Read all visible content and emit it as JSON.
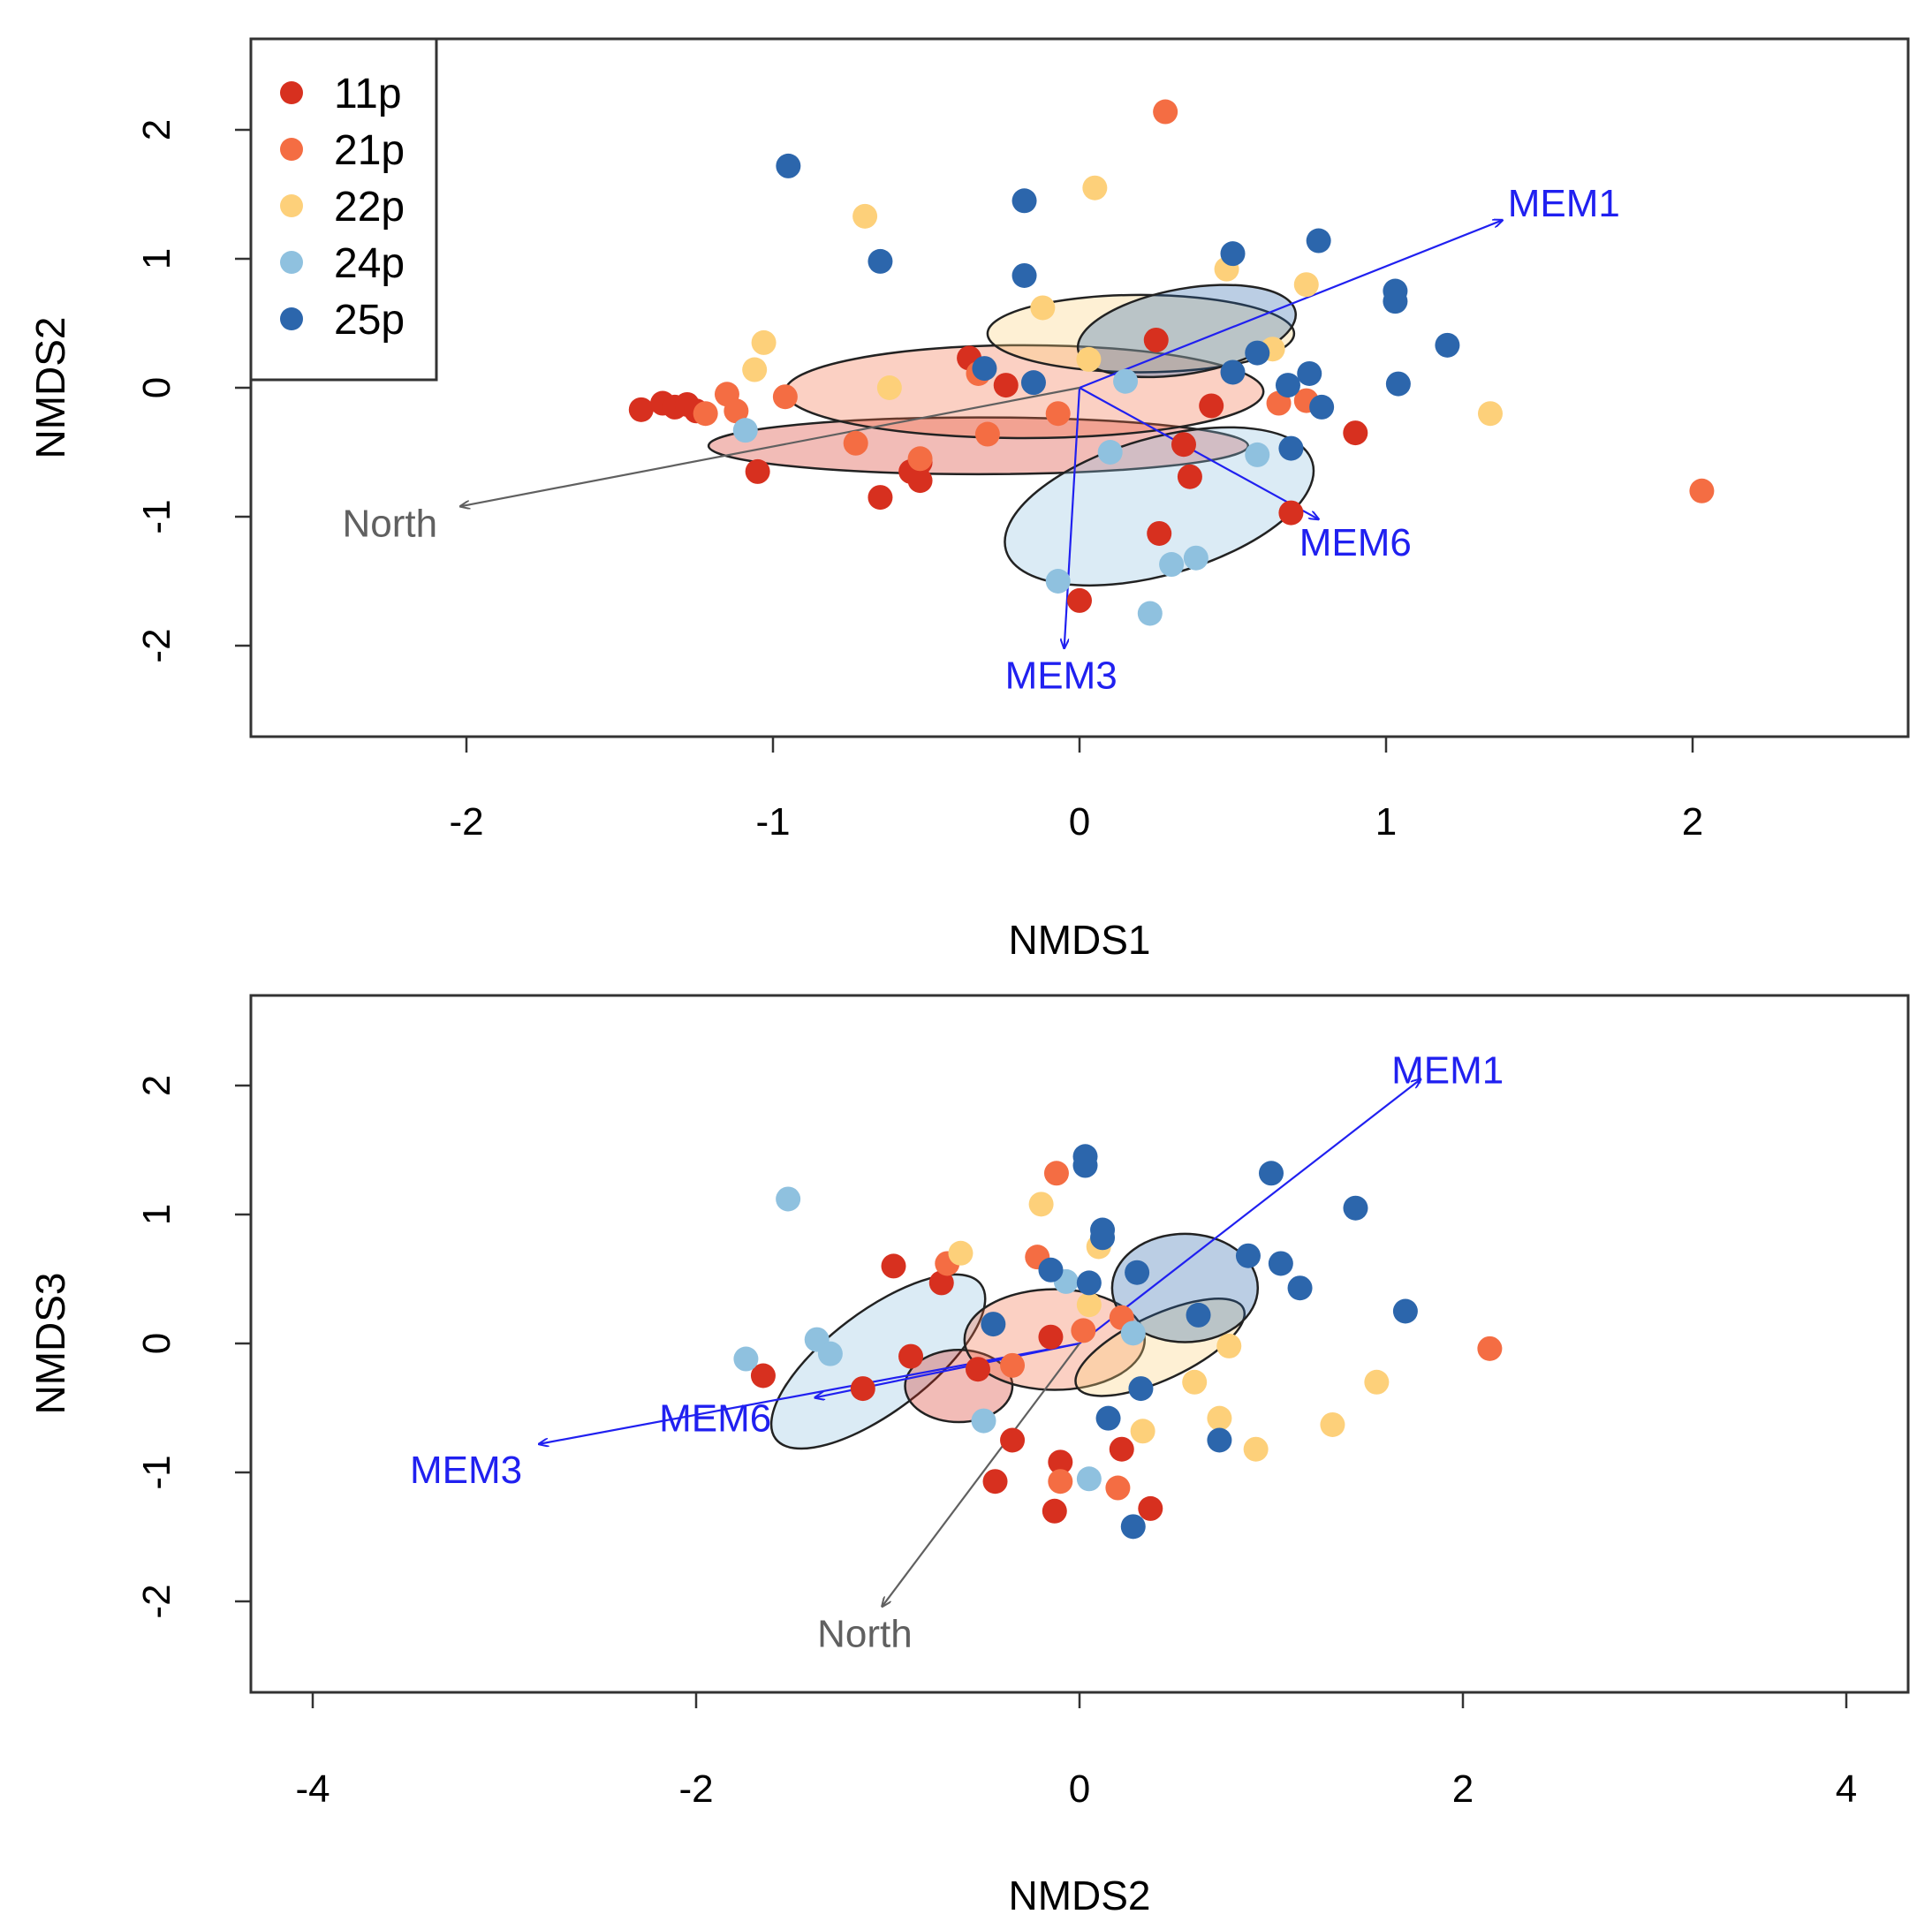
{
  "chart_data": [
    {
      "type": "scatter",
      "title": "",
      "xlabel": "NMDS1",
      "ylabel": "NMDS2",
      "xlim": [
        -2.7,
        2.7
      ],
      "ylim": [
        -2.7,
        2.7
      ],
      "x_ticks": [
        -2,
        -1,
        0,
        1,
        2
      ],
      "x_tick_labels": [
        "-2",
        "-1",
        "0",
        "1",
        "2"
      ],
      "y_ticks": [
        -2,
        -1,
        0,
        1,
        2
      ],
      "y_tick_labels": [
        "-2",
        "-1",
        "0",
        "1",
        "2"
      ],
      "legend": {
        "placement": "top-left",
        "entries": [
          {
            "label": "11p",
            "color": "#d7301f"
          },
          {
            "label": "21p",
            "color": "#f46d43"
          },
          {
            "label": "22p",
            "color": "#fdd07a"
          },
          {
            "label": "24p",
            "color": "#8fc1df"
          },
          {
            "label": "25p",
            "color": "#2c66ac"
          }
        ]
      },
      "series": [
        {
          "name": "11p",
          "color": "#d7301f",
          "points": [
            [
              -1.43,
              -0.17
            ],
            [
              -1.36,
              -0.12
            ],
            [
              -1.32,
              -0.15
            ],
            [
              -1.28,
              -0.13
            ],
            [
              -1.25,
              -0.18
            ],
            [
              -1.05,
              -0.65
            ],
            [
              -0.65,
              -0.85
            ],
            [
              -0.52,
              -0.58
            ],
            [
              -0.52,
              -0.72
            ],
            [
              -0.55,
              -0.65
            ],
            [
              -0.36,
              0.23
            ],
            [
              -0.24,
              0.02
            ],
            [
              0.25,
              0.37
            ],
            [
              0.34,
              -0.44
            ],
            [
              0.43,
              -0.14
            ],
            [
              0.69,
              -0.97
            ],
            [
              0.9,
              -0.35
            ],
            [
              0.0,
              -1.65
            ],
            [
              0.26,
              -1.13
            ],
            [
              0.36,
              -0.69
            ]
          ]
        },
        {
          "name": "21p",
          "color": "#f46d43",
          "points": [
            [
              -1.22,
              -0.2
            ],
            [
              -1.15,
              -0.05
            ],
            [
              -1.12,
              -0.18
            ],
            [
              -0.96,
              -0.07
            ],
            [
              -0.73,
              -0.43
            ],
            [
              -0.52,
              -0.55
            ],
            [
              -0.3,
              -0.36
            ],
            [
              0.28,
              2.14
            ],
            [
              0.65,
              -0.12
            ],
            [
              0.74,
              -0.1
            ],
            [
              2.03,
              -0.8
            ],
            [
              -0.07,
              -0.2
            ],
            [
              -0.33,
              0.11
            ]
          ]
        },
        {
          "name": "22p",
          "color": "#fdd07a",
          "points": [
            [
              -1.03,
              0.35
            ],
            [
              -1.06,
              0.14
            ],
            [
              -0.7,
              1.33
            ],
            [
              0.05,
              1.55
            ],
            [
              0.48,
              0.92
            ],
            [
              0.74,
              0.8
            ],
            [
              1.34,
              -0.2
            ],
            [
              0.03,
              0.22
            ],
            [
              -0.12,
              0.62
            ],
            [
              0.63,
              0.3
            ],
            [
              -0.62,
              0.0
            ]
          ]
        },
        {
          "name": "24p",
          "color": "#8fc1df",
          "points": [
            [
              -1.09,
              -0.33
            ],
            [
              0.1,
              -0.5
            ],
            [
              0.23,
              -1.75
            ],
            [
              0.3,
              -1.37
            ],
            [
              0.38,
              -1.32
            ],
            [
              0.58,
              -0.52
            ],
            [
              -0.07,
              -1.5
            ],
            [
              0.15,
              0.05
            ]
          ]
        },
        {
          "name": "25p",
          "color": "#2c66ac",
          "points": [
            [
              -0.95,
              1.72
            ],
            [
              -0.65,
              0.98
            ],
            [
              -0.18,
              1.45
            ],
            [
              -0.18,
              0.87
            ],
            [
              0.5,
              1.04
            ],
            [
              0.78,
              1.14
            ],
            [
              1.03,
              0.75
            ],
            [
              1.03,
              0.67
            ],
            [
              1.2,
              0.33
            ],
            [
              1.04,
              0.03
            ],
            [
              0.5,
              0.12
            ],
            [
              0.58,
              0.27
            ],
            [
              0.75,
              0.11
            ],
            [
              0.68,
              0.02
            ],
            [
              0.79,
              -0.15
            ],
            [
              0.69,
              -0.47
            ],
            [
              -0.31,
              0.15
            ],
            [
              -0.15,
              0.04
            ]
          ]
        }
      ],
      "ellipses": [
        {
          "group": "11p",
          "color": "#d7301f",
          "center": [
            -0.33,
            -0.45
          ],
          "semi_axes": [
            0.88,
            0.22
          ],
          "angle_deg": 0
        },
        {
          "group": "21p",
          "color": "#f46d43",
          "center": [
            -0.18,
            -0.03
          ],
          "semi_axes": [
            0.78,
            0.36
          ],
          "angle_deg": 0
        },
        {
          "group": "22p",
          "color": "#fdd07a",
          "center": [
            0.2,
            0.42
          ],
          "semi_axes": [
            0.5,
            0.3
          ],
          "angle_deg": 0
        },
        {
          "group": "24p",
          "color": "#8fc1df",
          "center": [
            0.26,
            -0.92
          ],
          "semi_axes": [
            0.52,
            0.53
          ],
          "angle_deg": -16
        },
        {
          "group": "25p",
          "color": "#2c66ac",
          "center": [
            0.35,
            0.44
          ],
          "semi_axes": [
            0.36,
            0.33
          ],
          "angle_deg": -10
        }
      ],
      "arrows": [
        {
          "label": "MEM1",
          "color": "#2020f0",
          "to": [
            1.38,
            1.3
          ],
          "label_pos": [
            1.58,
            1.43
          ]
        },
        {
          "label": "MEM6",
          "color": "#2020f0",
          "to": [
            0.78,
            -1.02
          ],
          "label_pos": [
            0.9,
            -1.2
          ]
        },
        {
          "label": "MEM3",
          "color": "#2020f0",
          "to": [
            -0.05,
            -2.02
          ],
          "label_pos": [
            -0.06,
            -2.23
          ]
        },
        {
          "label": "North",
          "color": "#606060",
          "to": [
            -2.02,
            -0.92
          ],
          "label_pos": [
            -2.25,
            -1.05
          ]
        }
      ]
    },
    {
      "type": "scatter",
      "title": "",
      "xlabel": "NMDS2",
      "ylabel": "NMDS3",
      "xlim": [
        -4.3,
        4.3
      ],
      "ylim": [
        -2.7,
        2.7
      ],
      "x_ticks": [
        -4,
        -2,
        0,
        2,
        4
      ],
      "x_tick_labels": [
        "-4",
        "-2",
        "0",
        "2",
        "4"
      ],
      "y_ticks": [
        -2,
        -1,
        0,
        1,
        2
      ],
      "y_tick_labels": [
        "-2",
        "-1",
        "0",
        "1",
        "2"
      ],
      "series": [
        {
          "name": "11p",
          "color": "#d7301f",
          "points": [
            [
              -1.65,
              -0.25
            ],
            [
              -0.97,
              0.6
            ],
            [
              -0.88,
              -0.1
            ],
            [
              -0.72,
              0.47
            ],
            [
              -1.13,
              -0.35
            ],
            [
              -0.53,
              -0.2
            ],
            [
              -0.44,
              -1.07
            ],
            [
              -0.35,
              -0.75
            ],
            [
              -0.15,
              0.05
            ],
            [
              -0.1,
              -0.92
            ],
            [
              -0.13,
              -1.3
            ],
            [
              0.22,
              -0.82
            ],
            [
              0.37,
              -1.28
            ]
          ]
        },
        {
          "name": "21p",
          "color": "#f46d43",
          "points": [
            [
              -0.69,
              0.62
            ],
            [
              -0.12,
              1.32
            ],
            [
              -0.22,
              0.67
            ],
            [
              -0.1,
              -1.07
            ],
            [
              0.2,
              -1.12
            ],
            [
              -0.35,
              -0.17
            ],
            [
              0.02,
              0.1
            ],
            [
              2.14,
              -0.04
            ],
            [
              0.22,
              0.2
            ]
          ]
        },
        {
          "name": "22p",
          "color": "#fdd07a",
          "points": [
            [
              -0.62,
              0.7
            ],
            [
              -0.2,
              1.08
            ],
            [
              0.1,
              0.75
            ],
            [
              0.33,
              -0.68
            ],
            [
              0.73,
              -0.58
            ],
            [
              0.92,
              -0.82
            ],
            [
              0.78,
              -0.02
            ],
            [
              1.32,
              -0.63
            ],
            [
              1.55,
              -0.3
            ],
            [
              0.6,
              -0.3
            ],
            [
              0.05,
              0.3
            ]
          ]
        },
        {
          "name": "24p",
          "color": "#8fc1df",
          "points": [
            [
              -1.52,
              1.12
            ],
            [
              -1.74,
              -0.12
            ],
            [
              -1.37,
              0.03
            ],
            [
              -1.3,
              -0.08
            ],
            [
              -0.07,
              0.48
            ],
            [
              0.05,
              -1.05
            ],
            [
              -0.5,
              -0.6
            ],
            [
              0.28,
              0.08
            ]
          ]
        },
        {
          "name": "25p",
          "color": "#2c66ac",
          "points": [
            [
              0.03,
              1.45
            ],
            [
              0.03,
              1.38
            ],
            [
              0.12,
              0.88
            ],
            [
              0.12,
              0.82
            ],
            [
              1.0,
              1.32
            ],
            [
              1.44,
              1.05
            ],
            [
              1.7,
              0.25
            ],
            [
              0.88,
              0.68
            ],
            [
              1.05,
              0.62
            ],
            [
              1.15,
              0.43
            ],
            [
              0.3,
              0.55
            ],
            [
              0.62,
              0.22
            ],
            [
              -0.45,
              0.15
            ],
            [
              -0.15,
              0.57
            ],
            [
              0.15,
              -0.58
            ],
            [
              0.32,
              -0.35
            ],
            [
              0.73,
              -0.75
            ],
            [
              0.28,
              -1.42
            ],
            [
              0.05,
              0.47
            ]
          ]
        }
      ],
      "ellipses": [
        {
          "group": "24p",
          "color": "#8fc1df",
          "center": [
            -1.05,
            -0.14
          ],
          "semi_axes": [
            0.67,
            0.39
          ],
          "angle_deg": -37
        },
        {
          "group": "11p",
          "color": "#d7301f",
          "center": [
            -0.63,
            -0.33
          ],
          "semi_axes": [
            0.28,
            0.28
          ],
          "angle_deg": 0
        },
        {
          "group": "21p",
          "color": "#f46d43",
          "center": [
            -0.13,
            0.03
          ],
          "semi_axes": [
            0.47,
            0.39
          ],
          "angle_deg": 0
        },
        {
          "group": "22p",
          "color": "#fdd07a",
          "center": [
            0.42,
            -0.03
          ],
          "semi_axes": [
            0.48,
            0.25
          ],
          "angle_deg": -25
        },
        {
          "group": "25p",
          "color": "#2c66ac",
          "center": [
            0.55,
            0.43
          ],
          "semi_axes": [
            0.38,
            0.42
          ],
          "angle_deg": 0
        }
      ],
      "arrows": [
        {
          "label": "MEM1",
          "color": "#2020f0",
          "to": [
            1.78,
            2.05
          ],
          "label_pos": [
            1.92,
            2.12
          ]
        },
        {
          "label": "MEM6",
          "color": "#2020f0",
          "to": [
            -1.38,
            -0.42
          ],
          "label_pos": [
            -1.9,
            -0.58
          ]
        },
        {
          "label": "MEM3",
          "color": "#2020f0",
          "to": [
            -2.82,
            -0.78
          ],
          "label_pos": [
            -3.2,
            -0.98
          ]
        },
        {
          "label": "North",
          "color": "#606060",
          "to": [
            -1.03,
            -2.04
          ],
          "label_pos": [
            -1.12,
            -2.25
          ]
        }
      ]
    }
  ]
}
